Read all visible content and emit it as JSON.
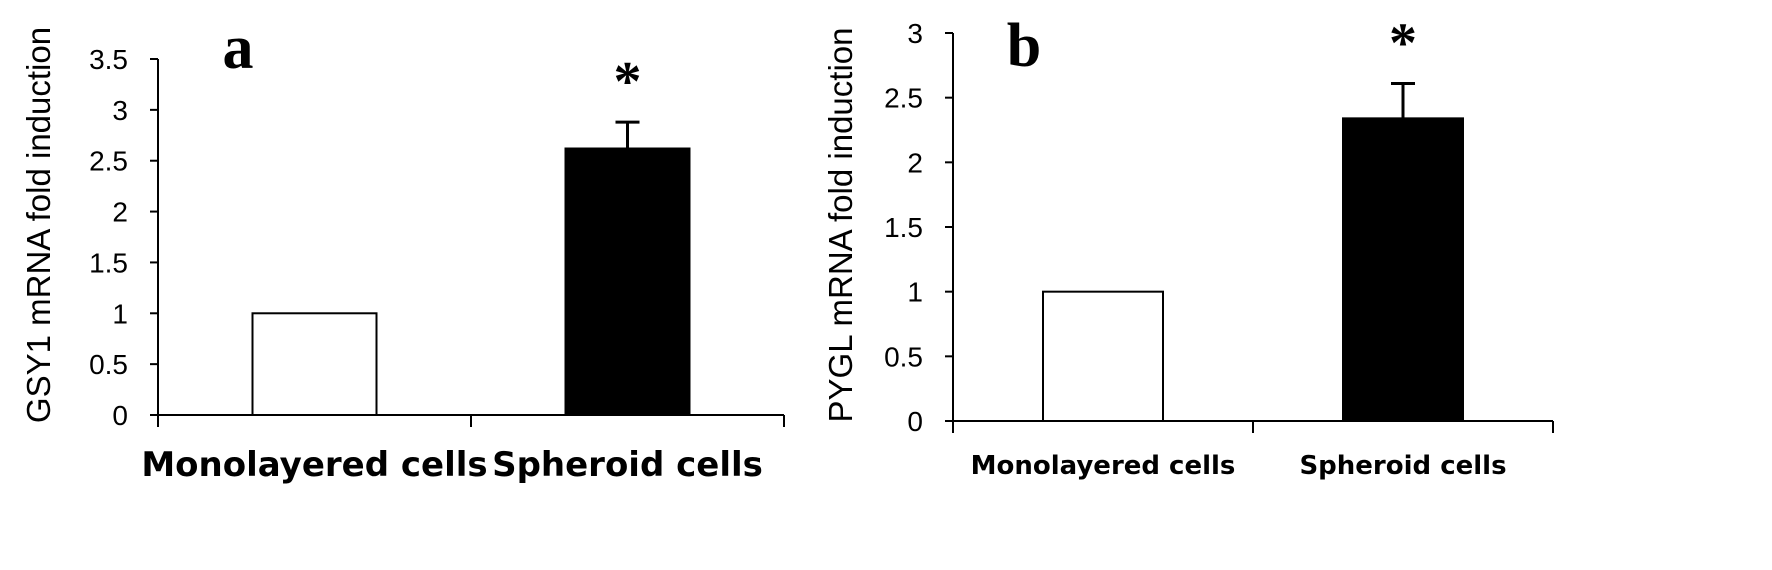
{
  "chart_data": [
    {
      "type": "bar",
      "panel_label": "a",
      "categories": [
        "Monolayered cells",
        "Spheroid cells"
      ],
      "values": [
        1.0,
        2.62
      ],
      "error_upper": [
        0,
        0.26
      ],
      "bar_colors": [
        "#ffffff",
        "#000000"
      ],
      "annotations": [
        "",
        "*"
      ],
      "ylabel": "GSY1 mRNA fold induction",
      "ylim": [
        0,
        3.5
      ],
      "yticks": [
        "0",
        "0.5",
        "1",
        "1.5",
        "2",
        "2.5",
        "3",
        "3.5"
      ],
      "grid": false
    },
    {
      "type": "bar",
      "panel_label": "b",
      "categories": [
        "Monolayered cells",
        "Spheroid cells"
      ],
      "values": [
        1.0,
        2.34
      ],
      "error_upper": [
        0,
        0.27
      ],
      "bar_colors": [
        "#ffffff",
        "#000000"
      ],
      "annotations": [
        "",
        "*"
      ],
      "ylabel": "PYGL mRNA fold induction",
      "ylim": [
        0,
        3
      ],
      "yticks": [
        "0",
        "0.5",
        "1",
        "1.5",
        "2",
        "2.5",
        "3"
      ],
      "grid": false
    }
  ]
}
